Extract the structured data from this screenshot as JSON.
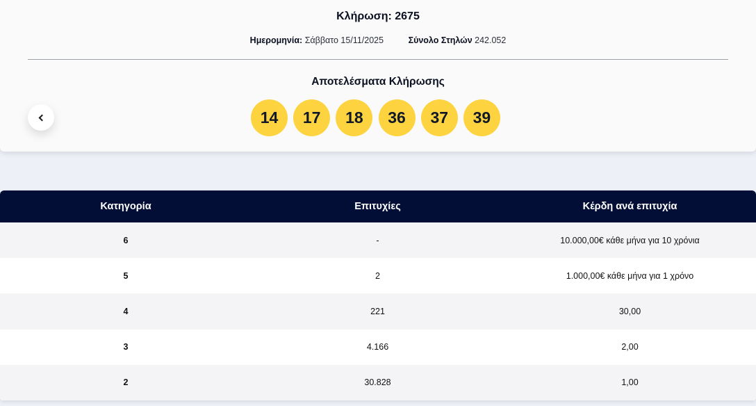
{
  "draw": {
    "title": "Κλήρωση: 2675",
    "date_label": "Ημερομηνία:",
    "date_value": "Σάββατο 15/11/2025",
    "total_label": "Σύνολο Στηλών",
    "total_value": "242.052",
    "results_title": "Αποτελέσματα Κλήρωσης",
    "numbers": [
      "14",
      "17",
      "18",
      "36",
      "37",
      "39"
    ],
    "ball_color": "#fdd33f",
    "prev_icon": "chevron-left-icon"
  },
  "table": {
    "header_color": "#020e36",
    "headers": [
      "Κατηγορία",
      "Επιτυχίες",
      "Κέρδη ανά επιτυχία"
    ],
    "rows": [
      [
        "6",
        "-",
        "10.000,00€ κάθε μήνα για 10 χρόνια"
      ],
      [
        "5",
        "2",
        "1.000,00€ κάθε μήνα για 1 χρόνο"
      ],
      [
        "4",
        "221",
        "30,00"
      ],
      [
        "3",
        "4.166",
        "2,00"
      ],
      [
        "2",
        "30.828",
        "1,00"
      ]
    ]
  }
}
